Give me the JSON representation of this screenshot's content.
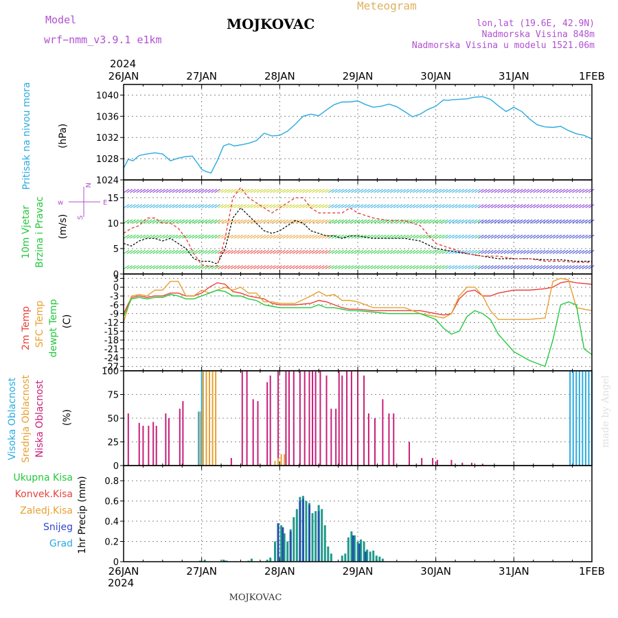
{
  "header": {
    "model_label": "Model",
    "model_name": "wrf−nmm_v3.9.1  e1km",
    "station": "MOJKOVAC",
    "product": "Meteogram",
    "lonlat": "lon,lat (19.6E, 42.9N)",
    "elevation": "Nadmorska Visina 848m",
    "model_elevation": "Nadmorska Visina u modelu 1521.06m",
    "footer_station": "MOJKOVAC",
    "watermark": "made by Angel",
    "year": "2024"
  },
  "colors": {
    "sky": "#2aaae0",
    "red": "#e8403a",
    "orange": "#e8a030",
    "green": "#22c83c",
    "magenta": "#c81e78",
    "blue": "#3344cc",
    "purple": "#b050d0",
    "teal": "#1e9a8a",
    "dark_blue": "#2255aa",
    "wind_purple": "#8030d0",
    "axis": "#000000",
    "grid": "#888888",
    "gold": "#e0b060"
  },
  "chart_data": [
    {
      "type": "line",
      "id": "pressure",
      "ylabel_name": "Pritisak na nivou mora",
      "ylabel_unit": "(hPa)",
      "ylim": [
        1024,
        1042
      ],
      "yticks": [
        1024,
        1028,
        1032,
        1036,
        1040
      ],
      "x_categories": [
        "26JAN",
        "27JAN",
        "28JAN",
        "29JAN",
        "30JAN",
        "31JAN",
        "1FEB"
      ],
      "series": [
        {
          "color": "#2aaae0",
          "x": [
            0,
            0.06,
            0.12,
            0.2,
            0.3,
            0.4,
            0.5,
            0.6,
            0.7,
            0.8,
            0.88,
            0.96,
            1.0,
            1.05,
            1.12,
            1.2,
            1.28,
            1.35,
            1.42,
            1.5,
            1.6,
            1.7,
            1.8,
            1.9,
            2.0,
            2.1,
            2.2,
            2.3,
            2.4,
            2.5,
            2.6,
            2.7,
            2.8,
            2.9,
            3.0,
            3.1,
            3.2,
            3.3,
            3.4,
            3.5,
            3.6,
            3.7,
            3.8,
            3.9,
            4.0,
            4.05,
            4.1,
            4.15,
            4.2,
            4.3,
            4.4,
            4.5,
            4.6,
            4.7,
            4.8,
            4.9,
            5.0,
            5.1,
            5.2,
            5.3,
            5.4,
            5.5,
            5.6,
            5.7,
            5.8,
            5.9,
            6.0
          ],
          "y": [
            1026.2,
            1027.9,
            1027.6,
            1028.6,
            1028.9,
            1029.1,
            1028.9,
            1027.6,
            1028.1,
            1028.4,
            1028.5,
            1026.9,
            1026.0,
            1025.6,
            1025.3,
            1027.6,
            1030.4,
            1030.8,
            1030.4,
            1030.6,
            1030.9,
            1031.4,
            1032.8,
            1032.3,
            1032.4,
            1033.2,
            1034.5,
            1036.0,
            1036.4,
            1036.1,
            1037.2,
            1038.2,
            1038.7,
            1038.7,
            1038.9,
            1038.2,
            1037.7,
            1037.9,
            1038.3,
            1037.8,
            1036.9,
            1035.9,
            1036.4,
            1037.3,
            1037.9,
            1038.5,
            1039.1,
            1039.0,
            1039.1,
            1039.2,
            1039.3,
            1039.6,
            1039.7,
            1039.2,
            1038.0,
            1036.9,
            1037.7,
            1036.9,
            1035.5,
            1034.4,
            1034.0,
            1033.9,
            1034.1,
            1033.3,
            1032.7,
            1032.4,
            1031.7
          ]
        }
      ]
    },
    {
      "type": "line",
      "id": "wind",
      "ylabel_name": "10m Vjetar",
      "ylabel_name2": "Brzina i Pravac",
      "ylabel_unit": "(m/s)",
      "ylim": [
        0,
        18.5
      ],
      "yticks": [
        0,
        5,
        10,
        15
      ],
      "compass": {
        "w": "w",
        "e": "E",
        "n": "N",
        "s": "S"
      },
      "series": [
        {
          "color": "#000000",
          "name": "",
          "x": [
            0,
            0.1,
            0.2,
            0.3,
            0.4,
            0.5,
            0.6,
            0.7,
            0.8,
            0.9,
            1.0,
            1.1,
            1.2,
            1.3,
            1.4,
            1.5,
            1.6,
            1.7,
            1.8,
            1.9,
            2.0,
            2.1,
            2.2,
            2.3,
            2.4,
            2.5,
            2.6,
            2.7,
            2.8,
            2.9,
            3.0,
            3.2,
            3.4,
            3.6,
            3.8,
            4.0,
            4.2,
            4.4,
            4.6,
            4.8,
            5.0,
            5.2,
            5.4,
            5.6,
            5.8,
            6.0
          ],
          "y": [
            6,
            5.5,
            6.5,
            7,
            7,
            6.5,
            7,
            6,
            5,
            3,
            2.5,
            2.5,
            2,
            5,
            11,
            13,
            11.5,
            10,
            8.5,
            8,
            8.5,
            9.5,
            10.5,
            10,
            8.5,
            8,
            7.5,
            7.5,
            7,
            7.5,
            7.5,
            7,
            7,
            7,
            6.5,
            5,
            4.5,
            4,
            3.5,
            3,
            3,
            3,
            2.8,
            2.8,
            2.5,
            2.5
          ]
        },
        {
          "color": "#e8403a",
          "name": "",
          "x": [
            0,
            0.1,
            0.2,
            0.3,
            0.4,
            0.5,
            0.6,
            0.7,
            0.8,
            0.9,
            1.0,
            1.1,
            1.2,
            1.3,
            1.4,
            1.5,
            1.6,
            1.7,
            1.8,
            1.9,
            2.0,
            2.1,
            2.2,
            2.3,
            2.4,
            2.5,
            2.6,
            2.7,
            2.8,
            2.9,
            3.0,
            3.2,
            3.4,
            3.6,
            3.8,
            4.0,
            4.2,
            4.4,
            4.6,
            4.8,
            5.0,
            5.2,
            5.4,
            5.6,
            5.8,
            6.0
          ],
          "y": [
            8,
            9,
            9.5,
            11,
            11,
            10,
            10,
            9,
            7,
            4,
            1.8,
            1.5,
            1.6,
            7,
            15,
            17,
            15,
            14,
            13,
            12,
            13,
            14,
            15,
            15,
            13,
            12,
            12,
            12,
            12,
            13,
            12,
            11,
            10.5,
            10.5,
            9.5,
            6,
            5,
            4,
            3.5,
            3.5,
            3,
            3,
            2.5,
            2.5,
            2.3,
            2.3
          ]
        }
      ]
    },
    {
      "type": "line",
      "id": "temperature",
      "ylabel_name": "2m Temp",
      "ylabel_name2": "SFC Temp",
      "ylabel_name3": "dewpt Temp",
      "ylabel_unit": "(C)",
      "ylim": [
        -28.5,
        4.5
      ],
      "yticks": [
        3,
        0,
        -3,
        -6,
        -9,
        -12,
        -15,
        -18,
        -21,
        -24,
        -27
      ],
      "series": [
        {
          "name": "2m Temp",
          "color": "#e8403a",
          "x": [
            0,
            0.1,
            0.2,
            0.3,
            0.4,
            0.5,
            0.6,
            0.7,
            0.8,
            0.9,
            1.0,
            1.1,
            1.2,
            1.3,
            1.4,
            1.5,
            1.6,
            1.7,
            1.8,
            1.9,
            2.0,
            2.2,
            2.4,
            2.5,
            2.6,
            2.7,
            2.8,
            2.9,
            3.0,
            3.2,
            3.4,
            3.6,
            3.8,
            4.0,
            4.1,
            4.2,
            4.3,
            4.4,
            4.5,
            4.6,
            4.7,
            4.8,
            5.0,
            5.2,
            5.4,
            5.5,
            5.6,
            5.7,
            5.8,
            6.0
          ],
          "y": [
            -9,
            -3.5,
            -3,
            -3.5,
            -3,
            -3,
            -2,
            -2,
            -3,
            -3,
            -2,
            0,
            1.5,
            1,
            -1.5,
            -2,
            -3,
            -3.5,
            -4,
            -5.5,
            -6,
            -6,
            -5.5,
            -4.5,
            -5,
            -6,
            -7,
            -7.5,
            -7.5,
            -8,
            -8,
            -8,
            -8,
            -9,
            -9.5,
            -9,
            -4,
            -1.5,
            -1,
            -3,
            -3,
            -2,
            -1,
            -1,
            -0.5,
            0,
            1.5,
            2,
            1.5,
            1
          ]
        },
        {
          "name": "SFC Temp",
          "color": "#e8a030",
          "x": [
            0,
            0.1,
            0.2,
            0.3,
            0.4,
            0.5,
            0.6,
            0.7,
            0.8,
            0.9,
            1.0,
            1.1,
            1.2,
            1.3,
            1.4,
            1.5,
            1.6,
            1.7,
            1.8,
            1.9,
            2.0,
            2.2,
            2.4,
            2.5,
            2.6,
            2.7,
            2.8,
            2.9,
            3.0,
            3.2,
            3.4,
            3.6,
            3.8,
            4.0,
            4.1,
            4.2,
            4.3,
            4.4,
            4.5,
            4.6,
            4.7,
            4.8,
            5.0,
            5.2,
            5.4,
            5.5,
            5.6,
            5.7,
            5.8,
            6.0
          ],
          "y": [
            -12,
            -3,
            -2.5,
            -3,
            -1,
            -1,
            2,
            2,
            -3,
            -3,
            -1,
            -2,
            -1,
            0,
            -1,
            0,
            -2,
            -2,
            -5,
            -5,
            -5.5,
            -5.5,
            -3,
            -1.5,
            -3,
            -2.5,
            -4.5,
            -4.5,
            -5,
            -7,
            -7,
            -7,
            -9,
            -10,
            -10.5,
            -9,
            -3,
            0,
            0,
            -3,
            -8,
            -11,
            -11,
            -11,
            -10.5,
            2,
            3,
            2.5,
            -7,
            -8
          ]
        },
        {
          "name": "dewpt Temp",
          "color": "#22c83c",
          "x": [
            0,
            0.1,
            0.2,
            0.3,
            0.4,
            0.5,
            0.6,
            0.7,
            0.8,
            0.9,
            1.0,
            1.1,
            1.2,
            1.3,
            1.4,
            1.5,
            1.6,
            1.7,
            1.8,
            1.9,
            2.0,
            2.2,
            2.4,
            2.5,
            2.6,
            2.7,
            2.8,
            2.9,
            3.0,
            3.2,
            3.4,
            3.6,
            3.8,
            4.0,
            4.1,
            4.2,
            4.3,
            4.4,
            4.5,
            4.6,
            4.7,
            4.8,
            5.0,
            5.2,
            5.4,
            5.5,
            5.6,
            5.7,
            5.8,
            5.9,
            6.0
          ],
          "y": [
            -10,
            -4,
            -3.5,
            -4,
            -3.5,
            -3.5,
            -2.5,
            -3,
            -4,
            -4,
            -3,
            -2,
            -1,
            -1.5,
            -3,
            -3,
            -4,
            -4.5,
            -6,
            -6.5,
            -7,
            -7,
            -7,
            -6,
            -7,
            -7,
            -7.5,
            -8,
            -8,
            -8.5,
            -9,
            -9,
            -9,
            -11,
            -14,
            -16,
            -15,
            -10,
            -8,
            -9,
            -11,
            -16,
            -22,
            -25,
            -27,
            -18,
            -6,
            -5,
            -6,
            -21,
            -23
          ]
        }
      ]
    },
    {
      "type": "bar",
      "id": "cloud",
      "ylabel_name": "Visoka Oblacnost",
      "ylabel_name2": "Srednja Oblacnost",
      "ylabel_name3": "Niska Oblacnost",
      "ylabel_unit": "(%)",
      "ylim": [
        0,
        100
      ],
      "yticks": [
        0,
        25,
        50,
        75,
        100
      ],
      "series": [
        {
          "name": "Niska Oblacnost",
          "color": "#c81e78",
          "x": [
            0.06,
            0.2,
            0.25,
            0.32,
            0.38,
            0.42,
            0.54,
            0.58,
            0.72,
            0.76,
            1.38,
            1.52,
            1.58,
            1.66,
            1.72,
            1.84,
            1.88,
            1.98,
            2.08,
            2.12,
            2.18,
            2.26,
            2.32,
            2.38,
            2.42,
            2.46,
            2.52,
            2.6,
            2.66,
            2.72,
            2.76,
            2.8,
            2.86,
            2.92,
            3.0,
            3.08,
            3.14,
            3.22,
            3.32,
            3.4,
            3.46,
            3.66,
            3.82,
            3.96,
            4.02,
            4.2,
            4.34,
            4.46,
            4.6
          ],
          "y": [
            55,
            45,
            42,
            42,
            46,
            42,
            55,
            50,
            60,
            68,
            8,
            100,
            100,
            70,
            68,
            88,
            95,
            100,
            100,
            100,
            100,
            100,
            100,
            100,
            100,
            100,
            100,
            95,
            60,
            60,
            100,
            95,
            100,
            100,
            100,
            95,
            55,
            50,
            70,
            55,
            55,
            25,
            8,
            8,
            6,
            6,
            3,
            3,
            2
          ]
        },
        {
          "name": "Srednja Oblacnost",
          "color": "#e8a030",
          "x": [
            0.98,
            1.02,
            1.06,
            1.1,
            1.14,
            1.18,
            1.94,
            1.98,
            2.02,
            2.06
          ],
          "y": [
            57,
            100,
            100,
            100,
            100,
            100,
            5,
            8,
            12,
            12
          ]
        },
        {
          "name": "Visoka Oblacnost",
          "color": "#2aaae0",
          "x": [
            0.96,
            1.0,
            5.72,
            5.76,
            5.8,
            5.84,
            5.88,
            5.92,
            5.96,
            6.0
          ],
          "y": [
            57,
            100,
            100,
            100,
            100,
            100,
            100,
            100,
            100,
            100
          ]
        }
      ]
    },
    {
      "type": "bar",
      "id": "precip",
      "ylabel_unit": "1hr Precip (mm)",
      "ylim": [
        0,
        0.95
      ],
      "yticks": [
        0,
        0.2,
        0.4,
        0.6,
        0.8
      ],
      "legend": [
        {
          "label": "Ukupna Kisa",
          "color": "#22c83c"
        },
        {
          "label": "Konvek.Kisa",
          "color": "#e8403a"
        },
        {
          "label": "Zaledj.Kisa",
          "color": "#e8a030"
        },
        {
          "label": "Snijeg",
          "color": "#3344cc"
        },
        {
          "label": "Grad",
          "color": "#2aaae0"
        }
      ],
      "x_categories": [
        "26JAN",
        "27JAN",
        "28JAN",
        "29JAN",
        "30JAN",
        "31JAN",
        "1FEB"
      ],
      "series": [
        {
          "name": "Ukupna Kisa",
          "color": "#1e9a8a",
          "x": [
            0.98,
            1.04,
            1.28,
            1.32,
            1.6,
            1.64,
            1.84,
            1.88,
            1.94,
            1.98,
            2.02,
            2.06,
            2.1,
            2.14,
            2.18,
            2.22,
            2.26,
            2.3,
            2.34,
            2.38,
            2.42,
            2.46,
            2.5,
            2.54,
            2.58,
            2.62,
            2.66,
            2.8,
            2.84,
            2.88,
            2.92,
            2.96,
            3.0,
            3.04,
            3.08,
            3.12,
            3.16,
            3.2,
            3.24,
            3.28,
            3.32
          ],
          "y": [
            0.01,
            0.02,
            0.02,
            0.01,
            0.01,
            0.03,
            0.02,
            0.04,
            0.2,
            0.38,
            0.36,
            0.28,
            0.2,
            0.32,
            0.44,
            0.52,
            0.64,
            0.65,
            0.6,
            0.58,
            0.48,
            0.5,
            0.56,
            0.52,
            0.36,
            0.15,
            0.08,
            0.06,
            0.08,
            0.24,
            0.3,
            0.26,
            0.2,
            0.22,
            0.2,
            0.12,
            0.1,
            0.11,
            0.06,
            0.05,
            0.03
          ]
        },
        {
          "name": "Snijeg",
          "color": "#2255aa",
          "x": [
            1.3,
            1.98,
            2.04,
            2.14,
            2.26,
            2.3,
            2.38,
            2.5,
            2.94,
            3.02,
            3.1
          ],
          "y": [
            0.01,
            0.38,
            0.34,
            0.3,
            0.6,
            0.62,
            0.56,
            0.5,
            0.26,
            0.18,
            0.1
          ]
        }
      ]
    }
  ]
}
